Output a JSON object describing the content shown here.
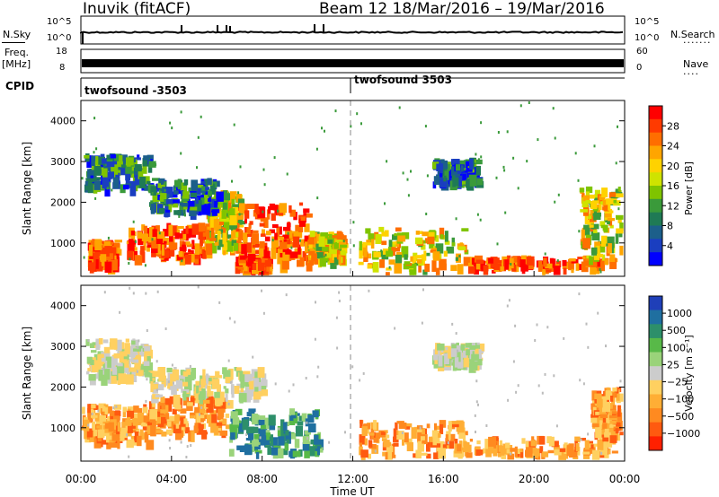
{
  "header": {
    "station": "Inuvik  (fitACF)",
    "beam_date": "Beam 12   18/Mar/2016 – 19/Mar/2016"
  },
  "strips": {
    "nsky_label": "N.Sky",
    "nsky_ticks": [
      "10^5",
      "10^0"
    ],
    "nsearch_label": "N.Search",
    "nsearch_dots": "·······",
    "freq_label": "Freq.",
    "freq_unit": "[MHz]",
    "freq_ticks": [
      "18",
      "8"
    ],
    "nave_ticks": [
      "60",
      "0"
    ],
    "nave_label": "Nave",
    "nave_dots": "····",
    "cpid_label": "CPID",
    "cpid_segments": [
      "twofsound -3503",
      "twofsound 3503"
    ]
  },
  "chart_data": [
    {
      "type": "heatmap",
      "title": "",
      "xlabel": "",
      "ylabel": "Slant Range [km]",
      "xlim": [
        "00:00",
        "00:00"
      ],
      "ylim": [
        180,
        4500
      ],
      "y_ticks": [
        1000,
        2000,
        3000,
        4000
      ],
      "colorbar": {
        "label": "Power [dB]",
        "ticks": [
          28,
          24,
          20,
          16,
          12,
          8,
          4
        ],
        "colors": [
          "#ff0000",
          "#ff3a00",
          "#ff6e00",
          "#ffa500",
          "#ffd200",
          "#cfe300",
          "#7fc400",
          "#3a9a3a",
          "#1f7a55",
          "#1c5f8a",
          "#1a3ec0",
          "#0000ff"
        ]
      },
      "regions": [
        {
          "t": [
            0.3,
            1.5
          ],
          "r": [
            500,
            1100
          ],
          "level": "high"
        },
        {
          "t": [
            2.0,
            5.5
          ],
          "r": [
            700,
            1500
          ],
          "level": "high"
        },
        {
          "t": [
            5.5,
            7.0
          ],
          "r": [
            900,
            2300
          ],
          "level": "mid"
        },
        {
          "t": [
            6.8,
            8.2
          ],
          "r": [
            250,
            700
          ],
          "level": "high"
        },
        {
          "t": [
            6.8,
            10.0
          ],
          "r": [
            500,
            2000
          ],
          "level": "high"
        },
        {
          "t": [
            10.0,
            11.5
          ],
          "r": [
            600,
            1300
          ],
          "level": "mid"
        },
        {
          "t": [
            0.1,
            3.0
          ],
          "r": [
            2400,
            3200
          ],
          "level": "low"
        },
        {
          "t": [
            3.0,
            6.0
          ],
          "r": [
            1800,
            2600
          ],
          "level": "low"
        },
        {
          "t": [
            12.2,
            17.0
          ],
          "r": [
            200,
            1400
          ],
          "level": "mid"
        },
        {
          "t": [
            15.5,
            17.5
          ],
          "r": [
            2500,
            3100
          ],
          "level": "low"
        },
        {
          "t": [
            17.0,
            23.0
          ],
          "r": [
            300,
            700
          ],
          "level": "high"
        },
        {
          "t": [
            22.0,
            24.0
          ],
          "r": [
            600,
            2400
          ],
          "level": "mid"
        }
      ]
    },
    {
      "type": "heatmap",
      "title": "",
      "xlabel": "Time UT",
      "ylabel": "Slant Range [km]",
      "x_ticks": [
        "00:00",
        "04:00",
        "08:00",
        "12:00",
        "16:00",
        "20:00",
        "00:00"
      ],
      "ylim": [
        180,
        4500
      ],
      "y_ticks": [
        1000,
        2000,
        3000,
        4000
      ],
      "colorbar": {
        "label": "Velocity [m s⁻¹]",
        "ticks": [
          "1000",
          "500",
          "100",
          "25",
          "−25",
          "−100",
          "−500",
          "−1000"
        ],
        "colors": [
          "#1f3fb8",
          "#1f6fa0",
          "#2d8f6a",
          "#58b948",
          "#9ad37a",
          "#cccccc",
          "#ffd060",
          "#ffae35",
          "#ff8a20",
          "#ff5a10",
          "#ff2000"
        ]
      },
      "regions": [
        {
          "t": [
            0.0,
            3.0
          ],
          "r": [
            700,
            1600
          ],
          "vel": "neg"
        },
        {
          "t": [
            3.0,
            6.5
          ],
          "r": [
            900,
            1800
          ],
          "vel": "neg"
        },
        {
          "t": [
            6.5,
            10.5
          ],
          "r": [
            400,
            1500
          ],
          "vel": "pos"
        },
        {
          "t": [
            0.2,
            3.0
          ],
          "r": [
            2300,
            3200
          ],
          "vel": "zero"
        },
        {
          "t": [
            3.0,
            8.0
          ],
          "r": [
            1800,
            2500
          ],
          "vel": "zero"
        },
        {
          "t": [
            12.2,
            17.0
          ],
          "r": [
            200,
            1200
          ],
          "vel": "neg"
        },
        {
          "t": [
            15.5,
            17.5
          ],
          "r": [
            2600,
            3100
          ],
          "vel": "zero"
        },
        {
          "t": [
            17.0,
            23.5
          ],
          "r": [
            250,
            800
          ],
          "vel": "neg"
        },
        {
          "t": [
            22.5,
            24.0
          ],
          "r": [
            700,
            2000
          ],
          "vel": "neg"
        }
      ]
    }
  ]
}
